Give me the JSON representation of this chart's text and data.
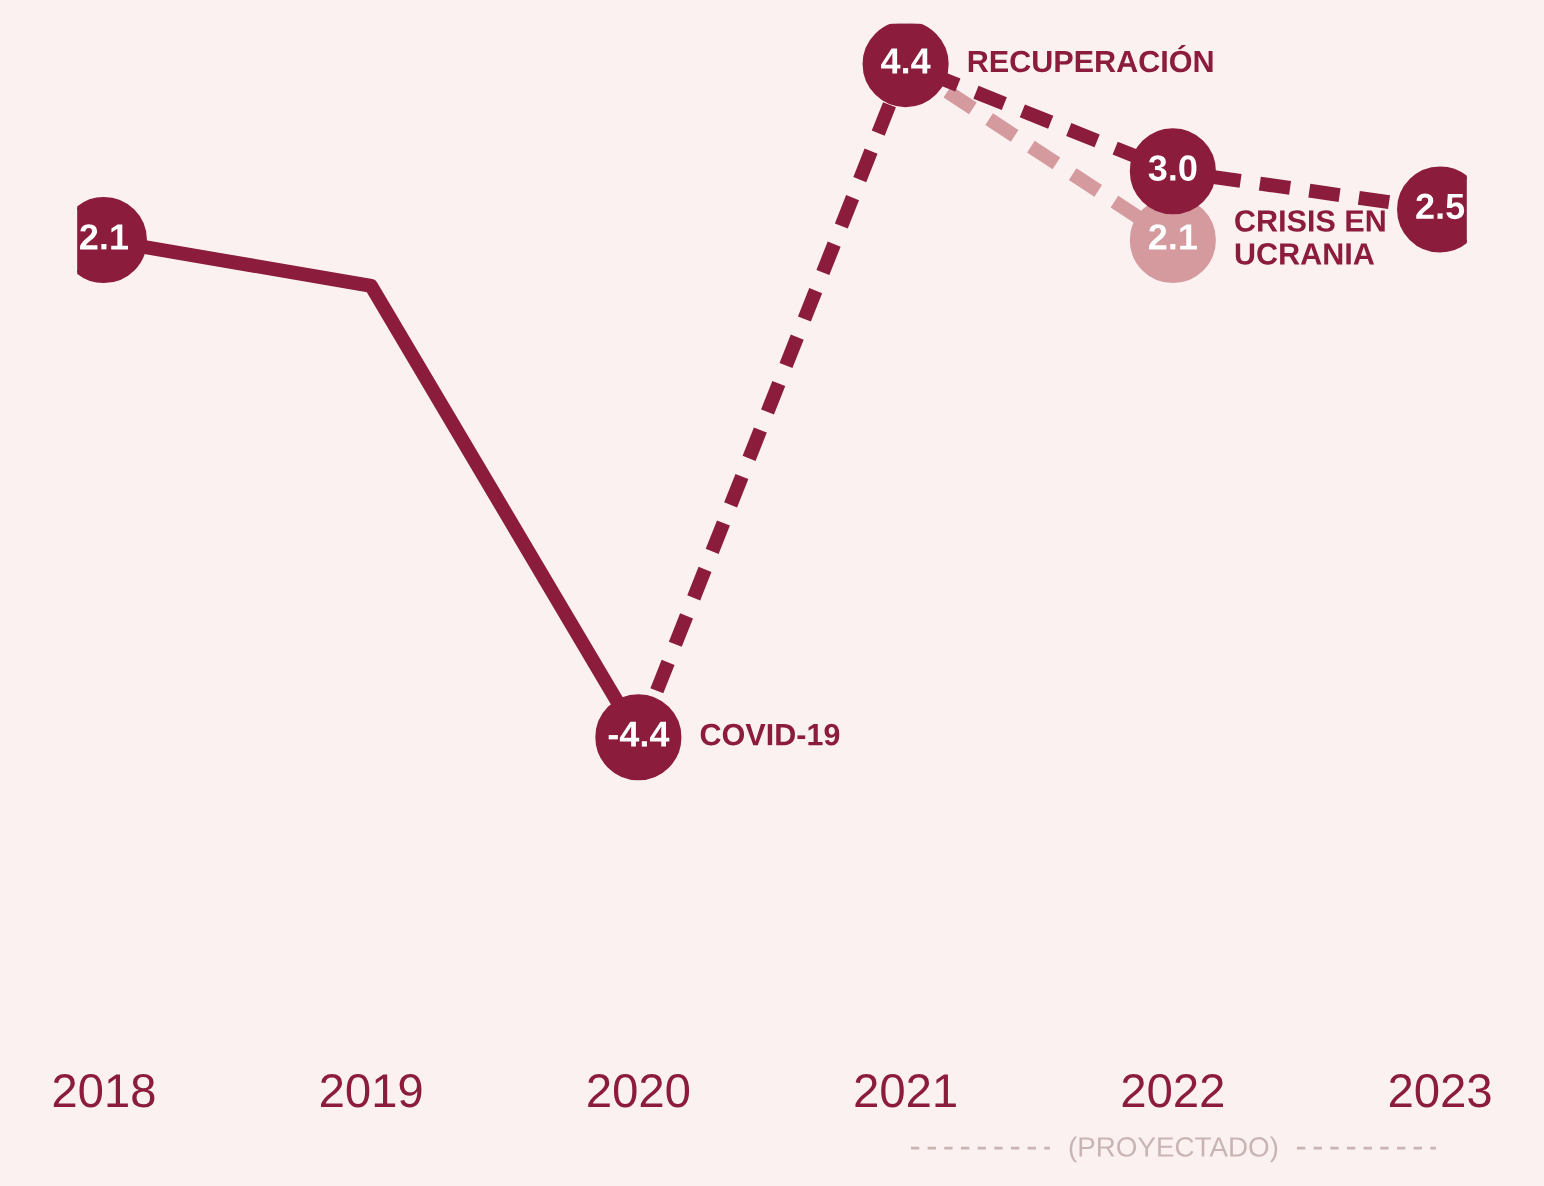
{
  "chart_data": {
    "type": "line",
    "categories": [
      "2018",
      "2019",
      "2020",
      "2021",
      "2022",
      "2023"
    ],
    "series": [
      {
        "color": "#8c1c3c",
        "line_style": "solid",
        "values": [
          2.1,
          1.5,
          -4.4,
          null,
          null,
          null
        ],
        "value_labels": [
          "2.1",
          null,
          "-4.4",
          null,
          null,
          null
        ]
      },
      {
        "color": "#d49a9e",
        "line_style": "dashed",
        "values": [
          null,
          null,
          null,
          4.4,
          2.1,
          null
        ],
        "value_labels": [
          null,
          null,
          null,
          null,
          "2.1",
          null
        ]
      },
      {
        "color": "#8c1c3c",
        "line_style": "dashed",
        "values": [
          null,
          null,
          -4.4,
          4.4,
          3.0,
          2.5
        ],
        "value_labels": [
          null,
          null,
          null,
          "4.4",
          "3.0",
          "2.5"
        ]
      }
    ],
    "marker": "circle",
    "grid": false,
    "legend": false,
    "annotations": [
      {
        "text": "COVID-19",
        "x": "2020",
        "y": -4.4
      },
      {
        "text": "RECUPERACIÓN",
        "x": "2021",
        "y": 4.4
      },
      {
        "text": "CRISIS EN\nUCRANIA",
        "x": "2022",
        "y": 2.1
      },
      "(PROYECTADO)"
    ]
  }
}
